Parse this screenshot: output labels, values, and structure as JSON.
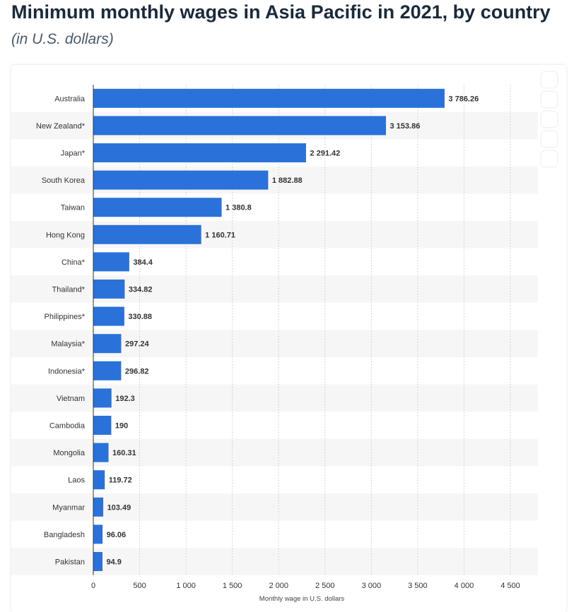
{
  "header": {
    "title": "Minimum monthly wages in Asia Pacific in 2021, by country",
    "subtitle": "(in U.S. dollars)"
  },
  "colors": {
    "bar": "#2a72d9",
    "band": "#f6f6f6",
    "grid": "#c8c8c8"
  },
  "toolbar": {
    "icons": [
      "tool-icon-1",
      "tool-icon-2",
      "tool-icon-3",
      "tool-icon-4",
      "tool-icon-5"
    ]
  },
  "chart_data": {
    "type": "bar",
    "orientation": "horizontal",
    "title": "Minimum monthly wages in Asia Pacific in 2021, by country",
    "subtitle": "(in U.S. dollars)",
    "xlabel": "Monthly wage in U.S. dollars",
    "ylabel": "",
    "xlim": [
      0,
      4500
    ],
    "ticks": [
      0,
      500,
      1000,
      1500,
      2000,
      2500,
      3000,
      3500,
      4000,
      4500
    ],
    "tick_labels": [
      "0",
      "500",
      "1 000",
      "1 500",
      "2 000",
      "2 500",
      "3 000",
      "3 500",
      "4 000",
      "4 500"
    ],
    "grid": true,
    "categories": [
      "Australia",
      "New Zealand*",
      "Japan*",
      "South Korea",
      "Taiwan",
      "Hong Kong",
      "China*",
      "Thailand*",
      "Philippines*",
      "Malaysia*",
      "Indonesia*",
      "Vietnam",
      "Cambodia",
      "Mongolia",
      "Laos",
      "Myanmar",
      "Bangladesh",
      "Pakistan"
    ],
    "values": [
      3786.26,
      3153.86,
      2291.42,
      1882.88,
      1380.8,
      1160.71,
      384.4,
      334.82,
      330.88,
      297.24,
      296.82,
      192.3,
      190,
      160.31,
      119.72,
      103.49,
      96.06,
      94.9
    ],
    "value_labels": [
      "3 786.26",
      "3 153.86",
      "2 291.42",
      "1 882.88",
      "1 380.8",
      "1 160.71",
      "384.4",
      "334.82",
      "330.88",
      "297.24",
      "296.82",
      "192.3",
      "190",
      "160.31",
      "119.72",
      "103.49",
      "96.06",
      "94.9"
    ]
  }
}
